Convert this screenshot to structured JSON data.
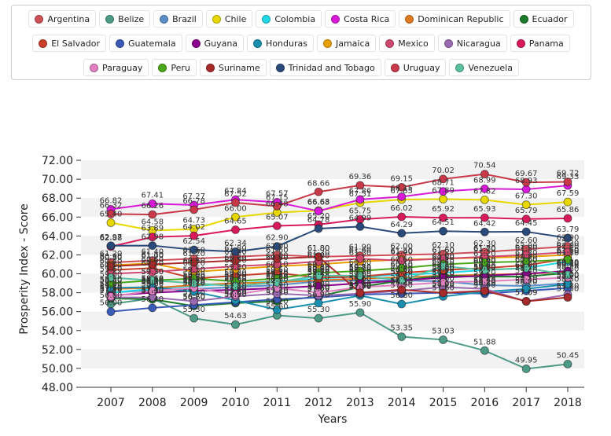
{
  "chart_data": {
    "type": "line",
    "title": "",
    "xlabel": "Years",
    "ylabel": "Prosperity Index - Score",
    "x": [
      "2007",
      "2008",
      "2009",
      "2010",
      "2011",
      "2012",
      "2013",
      "2014",
      "2015",
      "2016",
      "2017",
      "2018"
    ],
    "ylim": [
      48,
      73
    ],
    "yticks": [
      "48.00",
      "50.00",
      "52.00",
      "54.00",
      "56.00",
      "58.00",
      "60.00",
      "62.00",
      "64.00",
      "66.00",
      "68.00",
      "70.00",
      "72.00"
    ],
    "grid": "horizontal bands",
    "legend_position": "top",
    "series": [
      {
        "name": "Argentina",
        "color": "#d0505a",
        "values": [
          61.2,
          61.4,
          61.6,
          61.8,
          62.0,
          61.8,
          61.9,
          62.0,
          62.1,
          62.3,
          62.6,
          62.9
        ]
      },
      {
        "name": "Belize",
        "color": "#4d9a86",
        "values": [
          56.8,
          57.4,
          55.3,
          54.63,
          55.6,
          55.3,
          55.9,
          53.35,
          53.03,
          51.88,
          49.95,
          50.45
        ]
      },
      {
        "name": "Brazil",
        "color": "#5b8ec9",
        "values": [
          58.0,
          58.3,
          58.4,
          58.6,
          58.8,
          59.2,
          59.3,
          59.3,
          59.2,
          58.8,
          58.7,
          59.0
        ]
      },
      {
        "name": "Chile",
        "color": "#e8d800",
        "values": [
          65.4,
          64.58,
          64.73,
          66.0,
          66.48,
          66.68,
          67.51,
          67.85,
          67.89,
          67.82,
          67.3,
          67.59
        ]
      },
      {
        "name": "Colombia",
        "color": "#21d8e8",
        "values": [
          58.0,
          58.4,
          58.7,
          59.0,
          59.2,
          59.5,
          59.7,
          59.9,
          60.1,
          60.4,
          60.6,
          61.3
        ]
      },
      {
        "name": "Costa Rica",
        "color": "#d81ad8",
        "values": [
          66.82,
          67.41,
          67.27,
          67.84,
          67.57,
          66.63,
          67.86,
          68.15,
          68.71,
          68.99,
          68.93,
          69.33
        ]
      },
      {
        "name": "Dominican Republic",
        "color": "#e07820",
        "values": [
          58.4,
          58.5,
          58.8,
          59.0,
          59.1,
          59.3,
          59.5,
          59.6,
          59.8,
          59.9,
          60.0,
          60.2
        ]
      },
      {
        "name": "Ecuador",
        "color": "#1a7a2a",
        "values": [
          57.4,
          57.3,
          56.6,
          56.9,
          57.1,
          57.6,
          58.6,
          59.3,
          59.8,
          59.7,
          59.7,
          60.1
        ]
      },
      {
        "name": "El Salvador",
        "color": "#c8402a",
        "values": [
          60.4,
          60.6,
          59.5,
          59.8,
          60.1,
          59.6,
          59.7,
          60.1,
          60.4,
          60.6,
          60.9,
          61.6
        ]
      },
      {
        "name": "Guatemala",
        "color": "#3a5ab8",
        "values": [
          56.0,
          56.4,
          56.7,
          57.0,
          57.3,
          57.5,
          57.8,
          57.9,
          58.0,
          57.9,
          58.2,
          58.5
        ]
      },
      {
        "name": "Guyana",
        "color": "#8a008a",
        "values": [
          57.7,
          58.0,
          58.2,
          58.3,
          58.5,
          58.7,
          59.0,
          59.3,
          59.6,
          59.8,
          60.0,
          60.3
        ]
      },
      {
        "name": "Honduras",
        "color": "#1a8fb0",
        "values": [
          58.5,
          58.6,
          58.1,
          57.2,
          56.2,
          56.9,
          57.7,
          56.8,
          57.6,
          58.1,
          58.4,
          58.9
        ]
      },
      {
        "name": "Jamaica",
        "color": "#e8a000",
        "values": [
          60.9,
          61.1,
          60.2,
          60.5,
          60.8,
          61.0,
          61.3,
          61.5,
          61.6,
          61.7,
          61.8,
          62.0
        ]
      },
      {
        "name": "Mexico",
        "color": "#d04870",
        "values": [
          60.0,
          60.2,
          60.5,
          60.8,
          61.0,
          61.3,
          61.6,
          61.4,
          61.6,
          61.8,
          62.0,
          62.3
        ]
      },
      {
        "name": "Nicaragua",
        "color": "#9a6ab0",
        "values": [
          57.5,
          57.5,
          57.1,
          57.6,
          57.9,
          57.7,
          57.9,
          58.2,
          58.6,
          58.4,
          57.09,
          57.8
        ]
      },
      {
        "name": "Panama",
        "color": "#d81a5a",
        "values": [
          62.88,
          63.89,
          64.02,
          64.65,
          65.07,
          65.2,
          65.75,
          66.02,
          65.92,
          65.93,
          65.79,
          65.86
        ]
      },
      {
        "name": "Paraguay",
        "color": "#e080c0",
        "values": [
          57.6,
          58.2,
          58.5,
          57.8,
          58.5,
          58.0,
          58.6,
          58.8,
          59.1,
          59.2,
          59.4,
          59.6
        ]
      },
      {
        "name": "Peru",
        "color": "#4aa81a",
        "values": [
          59.0,
          59.3,
          59.5,
          59.2,
          59.5,
          60.1,
          60.3,
          60.6,
          61.0,
          61.2,
          61.3,
          61.5
        ]
      },
      {
        "name": "Suriname",
        "color": "#a82a2a",
        "values": [
          60.8,
          61.0,
          61.2,
          61.4,
          61.6,
          61.8,
          58.0,
          58.32,
          57.98,
          58.2,
          57.09,
          57.5
        ]
      },
      {
        "name": "Trinidad and Tobago",
        "color": "#2a4a7a",
        "values": [
          62.97,
          62.98,
          62.54,
          62.34,
          62.9,
          64.78,
          64.99,
          64.29,
          64.51,
          64.42,
          64.45,
          63.79
        ]
      },
      {
        "name": "Uruguay",
        "color": "#c83a4a",
        "values": [
          66.32,
          66.26,
          66.78,
          67.52,
          67.15,
          68.66,
          69.36,
          69.15,
          70.02,
          70.54,
          69.67,
          69.72
        ]
      },
      {
        "name": "Venezuela",
        "color": "#5ac0a0",
        "values": [
          59.6,
          59.3,
          59.0,
          58.7,
          59.1,
          59.8,
          59.8,
          59.3,
          60.8,
          60.4,
          60.6,
          59.9
        ]
      }
    ],
    "legend_rows": [
      [
        "Argentina",
        "Belize",
        "Brazil",
        "Chile",
        "Colombia",
        "Costa Rica",
        "Dominican Republic",
        "Ecuador"
      ],
      [
        "El Salvador",
        "Guatemala",
        "Guyana",
        "Honduras",
        "Jamaica",
        "Mexico",
        "Nicaragua",
        "Panama"
      ],
      [
        "Paraguay",
        "Peru",
        "Suriname",
        "Trinidad and Tobago",
        "Uruguay",
        "Venezuela"
      ]
    ]
  }
}
